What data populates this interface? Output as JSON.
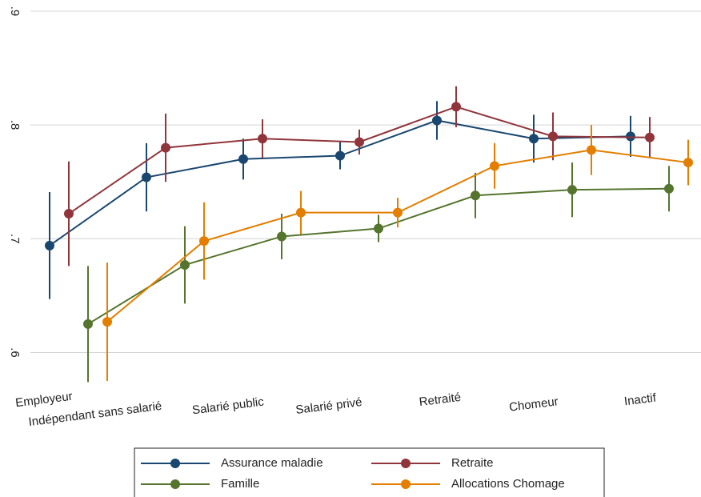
{
  "chart_data": {
    "type": "line",
    "categories": [
      "Employeur",
      "Indépendant sans salarié",
      "Salarié public",
      "Salarié privé",
      "Retraité",
      "Chomeur",
      "Inactif"
    ],
    "ylim": [
      0.575,
      0.9
    ],
    "yticks": [
      {
        "value": 0.6,
        "label": ".6"
      },
      {
        "value": 0.7,
        "label": ".7"
      },
      {
        "value": 0.8,
        "label": ".8"
      },
      {
        "value": 0.9,
        "label": ".9"
      }
    ],
    "grid": true,
    "legend": "bottom",
    "series": [
      {
        "name": "Assurance maladie",
        "color": "#1a476f",
        "values": [
          0.694,
          0.754,
          0.77,
          0.773,
          0.804,
          0.788,
          0.79
        ],
        "errors": [
          0.047,
          0.03,
          0.018,
          0.012,
          0.017,
          0.021,
          0.018
        ]
      },
      {
        "name": "Retraite",
        "color": "#90353b",
        "values": [
          0.722,
          0.78,
          0.788,
          0.785,
          0.816,
          0.79,
          0.789
        ],
        "errors": [
          0.046,
          0.03,
          0.017,
          0.011,
          0.018,
          0.021,
          0.018
        ]
      },
      {
        "name": "Famille",
        "color": "#55752f",
        "values": [
          0.625,
          0.677,
          0.702,
          0.709,
          0.738,
          0.743,
          0.744
        ],
        "errors": [
          0.051,
          0.034,
          0.02,
          0.012,
          0.02,
          0.024,
          0.02
        ]
      },
      {
        "name": "Allocations Chomage",
        "color": "#e37e00",
        "values": [
          0.627,
          0.698,
          0.723,
          0.723,
          0.764,
          0.778,
          0.767
        ],
        "errors": [
          0.052,
          0.034,
          0.019,
          0.013,
          0.02,
          0.022,
          0.02
        ]
      }
    ]
  }
}
